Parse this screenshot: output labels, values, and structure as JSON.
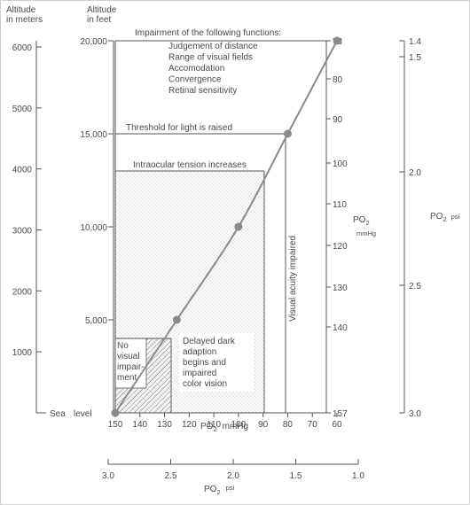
{
  "chart_data": {
    "type": "line",
    "axes": {
      "meters": {
        "title_line1": "Altitude",
        "title_line2": "in meters",
        "ticks": [
          1000,
          2000,
          3000,
          4000,
          5000,
          6000
        ],
        "range": [
          0,
          6000
        ]
      },
      "feet": {
        "title_line1": "Altitude",
        "title_line2": "in feet",
        "ticks": [
          5000,
          10000,
          15000,
          20000
        ],
        "tick_labels": [
          "5,000",
          "10,000",
          "15,000",
          "20,000"
        ],
        "range": [
          0,
          20000
        ],
        "sea_level_left": "Sea",
        "sea_level_right": "level"
      },
      "po2_bottom": {
        "title_main": "PO",
        "title_sub": "2",
        "title_unit": "mmHg",
        "ticks": [
          150,
          140,
          130,
          120,
          110,
          100,
          90,
          80,
          70,
          60
        ],
        "range": [
          150,
          60
        ]
      },
      "psi_bottom": {
        "title_main": "PO",
        "title_sub": "2",
        "title_unit": "psi",
        "ticks": [
          "3.0",
          "2.5",
          "2.0",
          "1.5",
          "1.0"
        ],
        "range": [
          3.0,
          1.0
        ]
      },
      "po2_right": {
        "title_main": "PO",
        "title_sub": "2",
        "title_unit": "mmHg",
        "ticks": [
          73,
          80,
          90,
          100,
          110,
          120,
          130,
          140,
          157
        ]
      },
      "psi_right": {
        "title_main": "PO",
        "title_sub": "2",
        "title_unit": "psi",
        "ticks": [
          "1.4",
          "1.5",
          "2.0",
          "2.5",
          "3.0"
        ]
      }
    },
    "series": [
      {
        "x_po2_mmHg": [
          150,
          125,
          100,
          80,
          60
        ],
        "y_altitude_ft": [
          0,
          5000,
          10000,
          15000,
          20000
        ]
      }
    ],
    "annotations": {
      "impairment_title": "Impairment of the following functions:",
      "impairment_items": [
        "Judgement of distance",
        "Range of visual fields",
        "Accomodation",
        "Convergence",
        "Retinal sensitivity"
      ],
      "threshold": "Threshold for light is raised",
      "intraocular": "Intraocular tension increases",
      "visual_acuity": "Visual acuity impaired",
      "no_impairment": [
        "No",
        "visual",
        "impair-",
        "ment"
      ],
      "delayed": [
        "Delayed dark",
        "adaption",
        "begins and",
        "impaired",
        "color vision"
      ]
    },
    "grid": false
  }
}
